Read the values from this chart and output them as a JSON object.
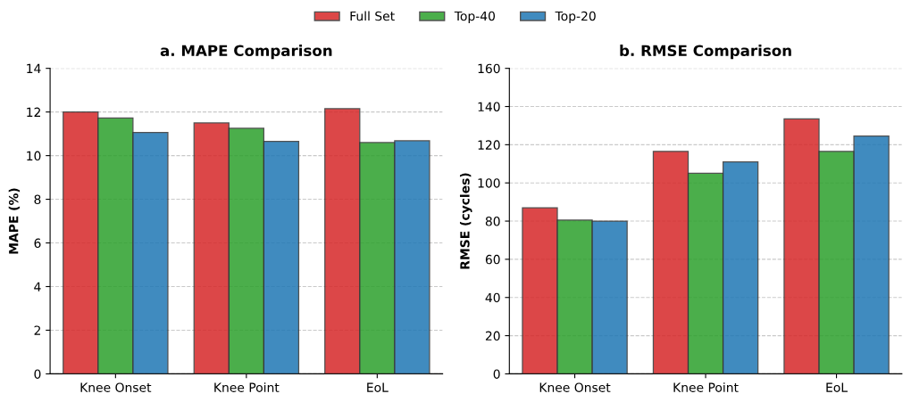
{
  "chart_data": [
    {
      "type": "bar",
      "title": "a. MAPE Comparison",
      "ylabel": "MAPE (%)",
      "categories": [
        "Knee Onset",
        "Knee Point",
        "EoL"
      ],
      "series": [
        {
          "name": "Full Set",
          "color": "#d62728",
          "values": [
            12.0,
            11.5,
            12.15
          ]
        },
        {
          "name": "Top-40",
          "color": "#2ca02c",
          "values": [
            11.72,
            11.25,
            10.6
          ]
        },
        {
          "name": "Top-20",
          "color": "#1f77b4",
          "values": [
            11.06,
            10.65,
            10.68
          ]
        }
      ],
      "ylim": [
        0,
        14
      ],
      "yticks": [
        0,
        2,
        4,
        6,
        8,
        10,
        12,
        14
      ],
      "grid": "y",
      "legend": "top"
    },
    {
      "type": "bar",
      "title": "b. RMSE Comparison",
      "ylabel": "RMSE (cycles)",
      "categories": [
        "Knee Onset",
        "Knee Point",
        "EoL"
      ],
      "series": [
        {
          "color": "#d62728",
          "values": [
            87,
            116.5,
            133.5
          ]
        },
        {
          "color": "#2ca02c",
          "values": [
            80.5,
            105,
            116.5
          ]
        },
        {
          "color": "#1f77b4",
          "values": [
            80,
            111,
            124.5
          ]
        }
      ],
      "ylim": [
        0,
        160
      ],
      "yticks": [
        0,
        20,
        40,
        60,
        80,
        100,
        120,
        140,
        160
      ],
      "grid": "y"
    }
  ]
}
